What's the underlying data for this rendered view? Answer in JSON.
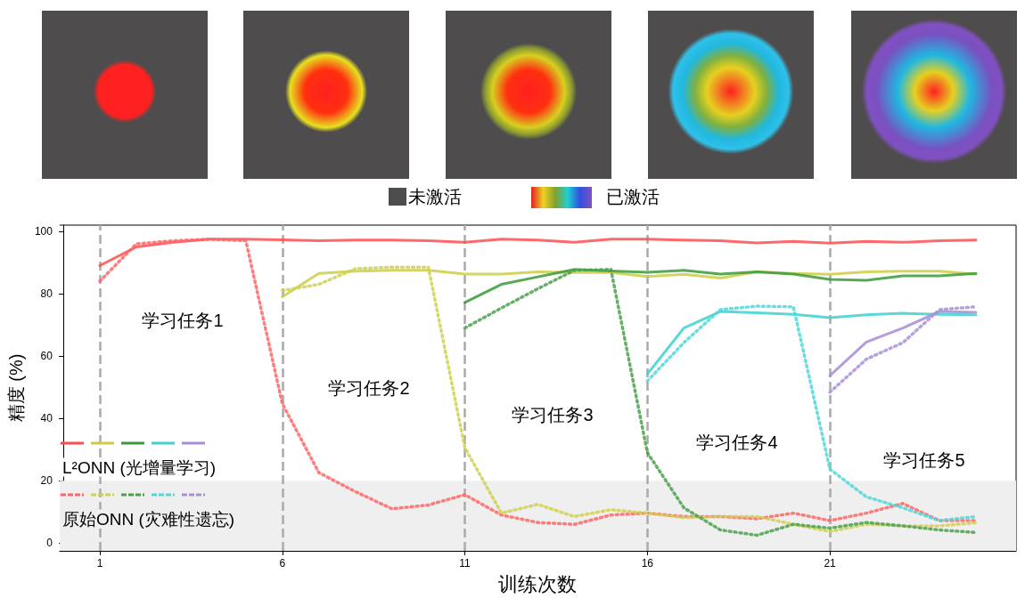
{
  "chart_data": {
    "type": "line",
    "xlabel": "训练次数",
    "ylabel": "精度 (%)",
    "xlim": [
      -0.1,
      26.1
    ],
    "ylim": [
      -2.5,
      102
    ],
    "xticks": [
      1,
      6,
      11,
      16,
      21
    ],
    "yticks": [
      0,
      20,
      40,
      60,
      80,
      100
    ],
    "grid": false,
    "marker": "none",
    "series": [
      {
        "color": "#ff4d4d",
        "line_style": "solid",
        "x": [
          1,
          2,
          3,
          4,
          5,
          6,
          7,
          8,
          9,
          10,
          11,
          12,
          13,
          14,
          15,
          16,
          17,
          18,
          19,
          20,
          21,
          22,
          23,
          24,
          25
        ],
        "values": [
          89,
          95,
          96.5,
          97.5,
          97.5,
          97.3,
          97,
          97.2,
          97.2,
          97,
          96.5,
          97.5,
          97.2,
          96.5,
          97.5,
          97.5,
          97.2,
          97,
          96.3,
          96.8,
          96.2,
          96.8,
          96.5,
          97,
          97.2
        ]
      },
      {
        "color": "#cccc44",
        "line_style": "solid",
        "x": [
          6,
          7,
          8,
          9,
          10,
          11,
          12,
          13,
          14,
          15,
          16,
          17,
          18,
          19,
          20,
          21,
          22,
          23,
          24,
          25
        ],
        "values": [
          79,
          86.5,
          87.2,
          87.5,
          87.5,
          86.3,
          86.3,
          87,
          86.8,
          86.8,
          85.5,
          86.2,
          85,
          87,
          86.5,
          86.2,
          87,
          87.2,
          87.2,
          86.2
        ]
      },
      {
        "color": "#3a9a3a",
        "line_style": "solid",
        "x": [
          11,
          12,
          13,
          14,
          15,
          16,
          17,
          18,
          19,
          20,
          21,
          22,
          23,
          24,
          25
        ],
        "values": [
          77.2,
          83,
          85.4,
          87.8,
          87.3,
          86.9,
          87.5,
          86.3,
          87,
          86.3,
          84.6,
          84.3,
          85.7,
          85.7,
          86.5
        ]
      },
      {
        "color": "#40d0d0",
        "line_style": "solid",
        "x": [
          16,
          17,
          18,
          19,
          20,
          21,
          22,
          23,
          24,
          25
        ],
        "values": [
          54.2,
          69,
          74.3,
          73.9,
          73.4,
          72.3,
          73.2,
          73.7,
          73.4,
          73.2
        ]
      },
      {
        "color": "#a88cd4",
        "line_style": "solid",
        "x": [
          21,
          22,
          23,
          24,
          25
        ],
        "values": [
          53.7,
          64.5,
          69,
          74.3,
          74
        ]
      },
      {
        "color": "#ff6666",
        "line_style": "dotted",
        "x": [
          1,
          2,
          3,
          4,
          5,
          6,
          7,
          8,
          9,
          10,
          11,
          12,
          13,
          14,
          15,
          16,
          17,
          18,
          19,
          20,
          21,
          22,
          23,
          24,
          25
        ],
        "values": [
          84,
          96,
          97,
          97.5,
          97,
          44.7,
          22.6,
          16.5,
          11,
          12.2,
          15.5,
          9,
          6.6,
          6,
          9,
          9.6,
          8.5,
          8.5,
          7.8,
          9.6,
          7.2,
          9.6,
          12.7,
          7.2,
          7.2
        ]
      },
      {
        "color": "#d0d050",
        "line_style": "dotted",
        "x": [
          6,
          7,
          8,
          9,
          10,
          11,
          12,
          13,
          14,
          15,
          16,
          17,
          18,
          19,
          20,
          21,
          22,
          23,
          24,
          25
        ],
        "values": [
          81,
          83,
          88,
          88.5,
          88.5,
          30.6,
          9.6,
          12.4,
          8.5,
          10.7,
          9.6,
          8.2,
          8.5,
          8.5,
          6,
          3.7,
          6,
          5.5,
          5.5,
          6.5
        ]
      },
      {
        "color": "#4ca04c",
        "line_style": "dotted",
        "x": [
          11,
          12,
          13,
          14,
          15,
          16,
          17,
          18,
          19,
          20,
          21,
          22,
          23,
          24,
          25
        ],
        "values": [
          69,
          75.4,
          81.6,
          87.5,
          87.8,
          29,
          11.3,
          4.2,
          2.5,
          6,
          4.8,
          6.6,
          5.5,
          4.2,
          3.4
        ]
      },
      {
        "color": "#50d8d8",
        "line_style": "dotted",
        "x": [
          16,
          17,
          18,
          19,
          20,
          21,
          22,
          23,
          24,
          25
        ],
        "values": [
          52,
          64.3,
          74.9,
          76,
          75.8,
          23.7,
          14.8,
          11.3,
          7.2,
          8.5
        ]
      },
      {
        "color": "#a890d8",
        "line_style": "dotted",
        "x": [
          21,
          22,
          23,
          24,
          25
        ],
        "values": [
          48.4,
          59,
          64.3,
          74.9,
          75.8
        ]
      }
    ],
    "ref_lines": [
      {
        "axis": "x",
        "value": 1,
        "color": "#aaaaaa",
        "line_style": "dashed"
      },
      {
        "axis": "x",
        "value": 6,
        "color": "#aaaaaa",
        "line_style": "dashed"
      },
      {
        "axis": "x",
        "value": 11,
        "color": "#aaaaaa",
        "line_style": "dashed"
      },
      {
        "axis": "x",
        "value": 16,
        "color": "#aaaaaa",
        "line_style": "dashed"
      },
      {
        "axis": "x",
        "value": 21,
        "color": "#aaaaaa",
        "line_style": "dashed"
      }
    ],
    "bands": [
      {
        "axis": "y",
        "from": -2.5,
        "to": 20,
        "color": "#efefef"
      }
    ],
    "annotations": [
      "L²ONN (光增量学习)",
      "原始ONN (灾难性遗忘)",
      "未激活",
      "已激活",
      "学习任务1",
      "学习任务2",
      "学习任务3",
      "学习任务4",
      "学习任务5"
    ]
  }
}
